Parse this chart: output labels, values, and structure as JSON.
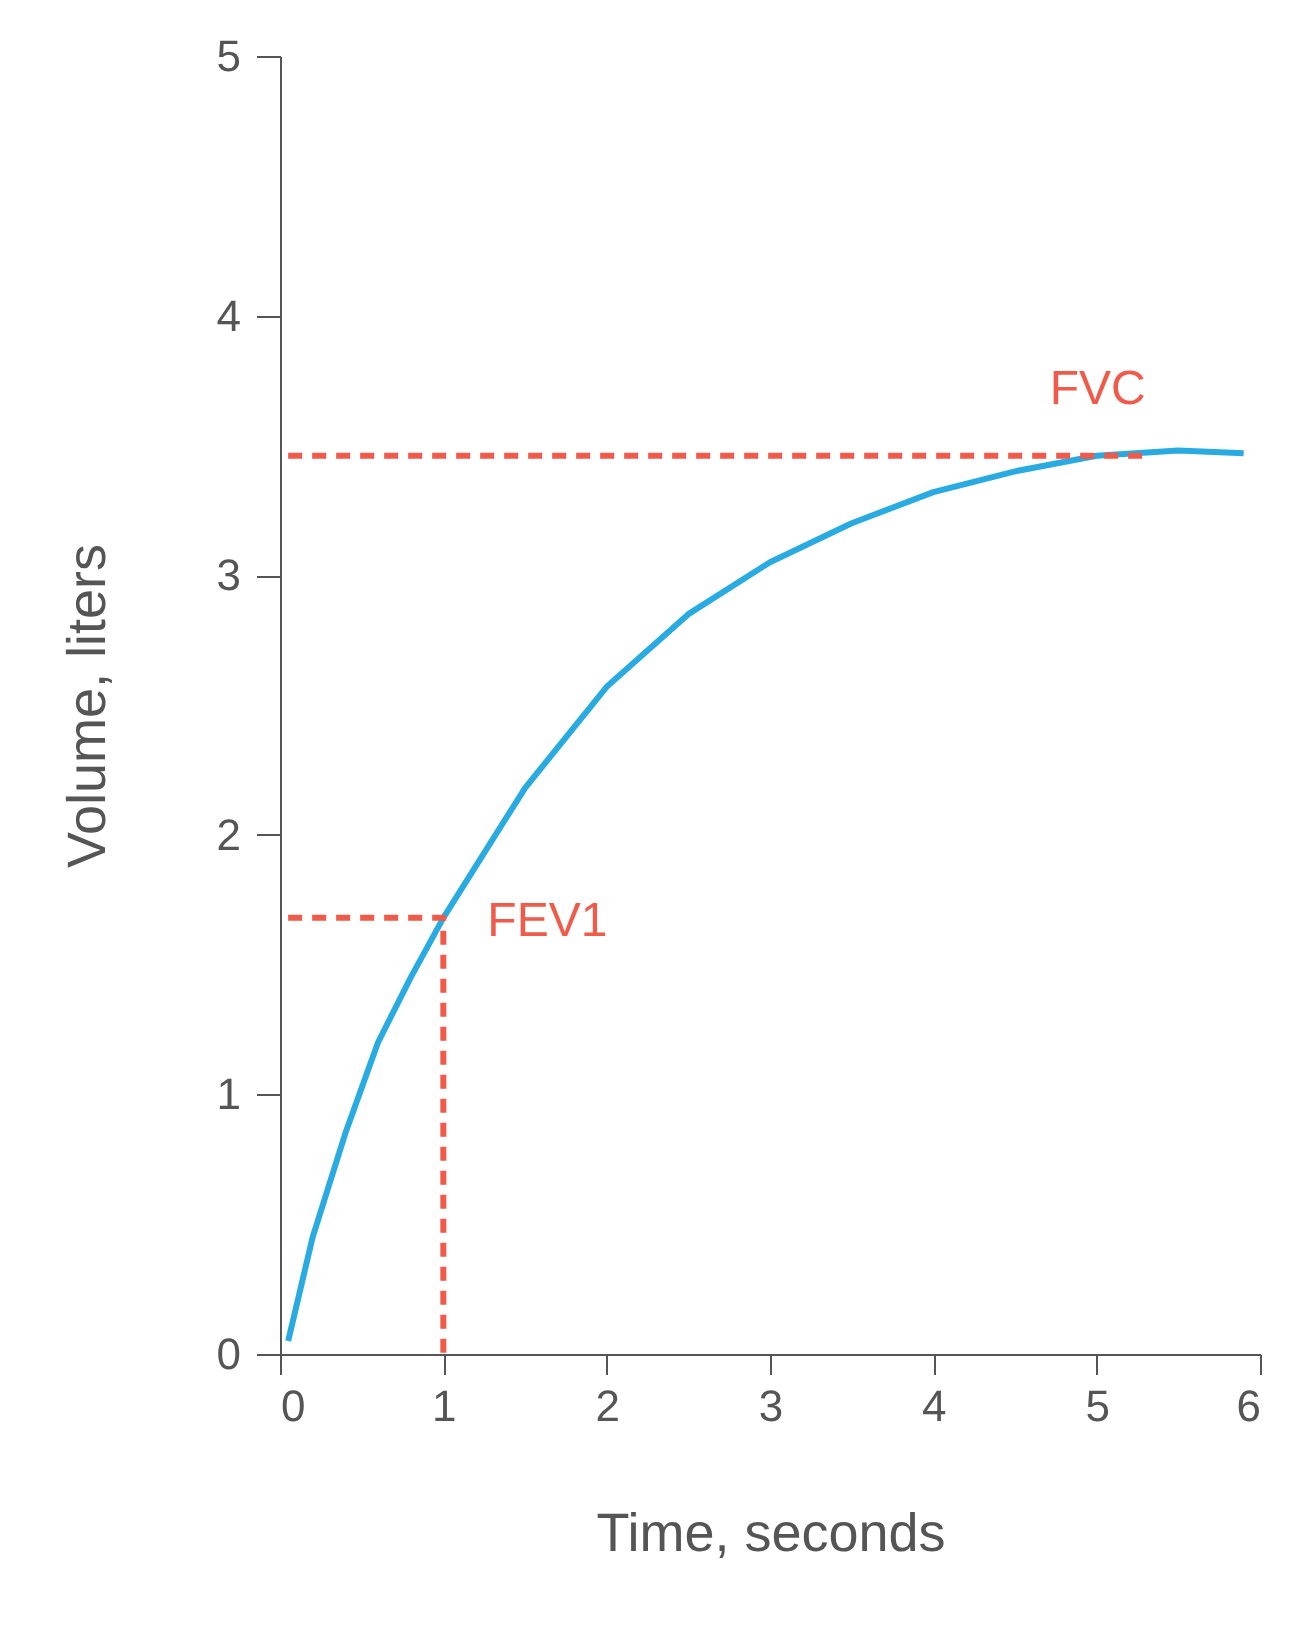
{
  "chart_data": {
    "type": "line",
    "xlabel": "Time, seconds",
    "ylabel": "Volume, liters",
    "xlim": [
      0,
      6
    ],
    "ylim": [
      0,
      5
    ],
    "xticks": [
      0,
      1,
      2,
      3,
      4,
      5,
      6
    ],
    "yticks": [
      0,
      1,
      2,
      3,
      4,
      5
    ],
    "grid": false,
    "series": [
      {
        "color": "#29abe2",
        "line_style": "solid",
        "x": [
          0.05,
          0.2,
          0.4,
          0.6,
          0.8,
          1.0,
          1.5,
          2.0,
          2.5,
          3.0,
          3.5,
          4.0,
          4.5,
          5.0,
          5.5,
          5.9
        ],
        "values": [
          0.05,
          0.45,
          0.85,
          1.2,
          1.45,
          1.68,
          2.18,
          2.57,
          2.85,
          3.05,
          3.2,
          3.32,
          3.4,
          3.46,
          3.48,
          3.47
        ]
      },
      {
        "color": "#f05a4a",
        "line_style": "dashed",
        "x": [
          0.05,
          5.3
        ],
        "values": [
          3.46,
          3.46
        ]
      },
      {
        "color": "#f05a4a",
        "line_style": "dashed",
        "x": [
          0.05,
          1,
          1
        ],
        "values": [
          1.68,
          1.68,
          0
        ]
      }
    ],
    "annotations": [
      {
        "text": "FVC",
        "x": 5.3,
        "y": 3.46
      },
      {
        "text": "FEV1",
        "x": 1,
        "y": 1.68
      }
    ]
  }
}
